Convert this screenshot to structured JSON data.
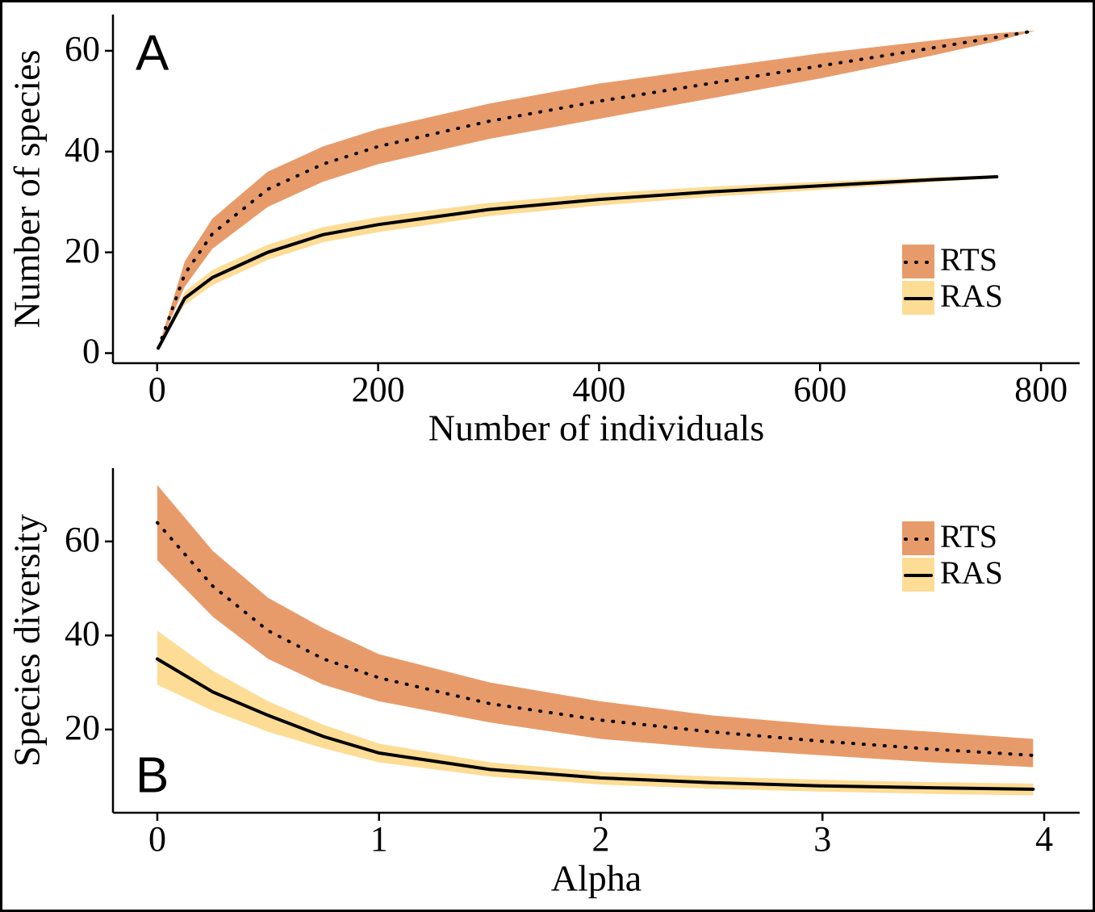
{
  "chart_data": [
    {
      "type": "line",
      "annotation": "A",
      "xlabel": "Number of individuals",
      "ylabel": "Number of species",
      "x": [
        1,
        25,
        50,
        100,
        150,
        200,
        300,
        400,
        500,
        600,
        700,
        760,
        795
      ],
      "series": [
        {
          "name": "RTS",
          "color": "#000000",
          "band_color": "#e89b6a",
          "dash": "dotted",
          "values": [
            1,
            15.7,
            23.7,
            32.5,
            37.5,
            41,
            46,
            50,
            53.5,
            57,
            60.5,
            62.7,
            64
          ],
          "lower": [
            1,
            13.2,
            20.7,
            29,
            34,
            37.5,
            42.5,
            46.5,
            50.5,
            54.5,
            59,
            61.9,
            64
          ],
          "upper": [
            1,
            18.2,
            26.7,
            36,
            41,
            44.5,
            49.5,
            53.5,
            56.5,
            59.5,
            62,
            63.5,
            64
          ]
        },
        {
          "name": "RAS",
          "color": "#000000",
          "band_color": "#fddc95",
          "dash": "solid",
          "values": [
            1,
            10.9,
            15,
            20,
            23.5,
            25.5,
            28.5,
            30.5,
            32,
            33.2,
            34.4,
            35,
            null
          ],
          "lower": [
            1,
            9.6,
            13.5,
            18.5,
            22,
            24,
            27.2,
            29.3,
            31,
            32.4,
            33.9,
            34.7,
            null
          ],
          "upper": [
            1,
            12.2,
            16.5,
            21.5,
            25,
            27,
            29.8,
            31.7,
            33,
            34,
            34.9,
            35.3,
            null
          ]
        }
      ],
      "xlim": [
        -40,
        835
      ],
      "ylim": [
        -2,
        67.2
      ],
      "xticks": [
        0,
        200,
        400,
        600,
        800
      ],
      "yticks": [
        0,
        20,
        40,
        60
      ],
      "legend": "right"
    },
    {
      "type": "line",
      "annotation": "B",
      "xlabel": "Alpha",
      "ylabel": "Species diversity",
      "x": [
        0,
        0.25,
        0.5,
        0.75,
        1,
        1.5,
        2,
        2.5,
        3,
        3.5,
        3.95
      ],
      "series": [
        {
          "name": "RTS",
          "color": "#000000",
          "band_color": "#e89b6a",
          "dash": "dotted",
          "values": [
            64,
            50.5,
            41,
            35,
            31,
            25.5,
            22,
            19.5,
            17.5,
            15.8,
            14.5
          ],
          "lower": [
            56,
            44,
            35,
            29.5,
            26,
            21.5,
            18,
            16,
            14.5,
            13,
            12
          ],
          "upper": [
            72,
            58,
            48,
            41.5,
            36,
            30,
            26,
            23,
            21,
            19.5,
            18
          ]
        },
        {
          "name": "RAS",
          "color": "#000000",
          "band_color": "#fddc95",
          "dash": "solid",
          "values": [
            35,
            28,
            23,
            18.5,
            15,
            11.5,
            9.7,
            8.7,
            8,
            7.6,
            7.3
          ],
          "lower": [
            29.5,
            24,
            19.5,
            16,
            13,
            10,
            8.3,
            7.4,
            6.8,
            6.3,
            6
          ],
          "upper": [
            41,
            32.5,
            26,
            21,
            17,
            13,
            11,
            10,
            9.3,
            8.8,
            8.5
          ]
        }
      ],
      "xlim": [
        -0.2,
        4.16
      ],
      "ylim": [
        2.3,
        75.6
      ],
      "xticks": [
        0,
        1,
        2,
        3,
        4
      ],
      "yticks": [
        20,
        40,
        60
      ],
      "legend": "right"
    }
  ]
}
